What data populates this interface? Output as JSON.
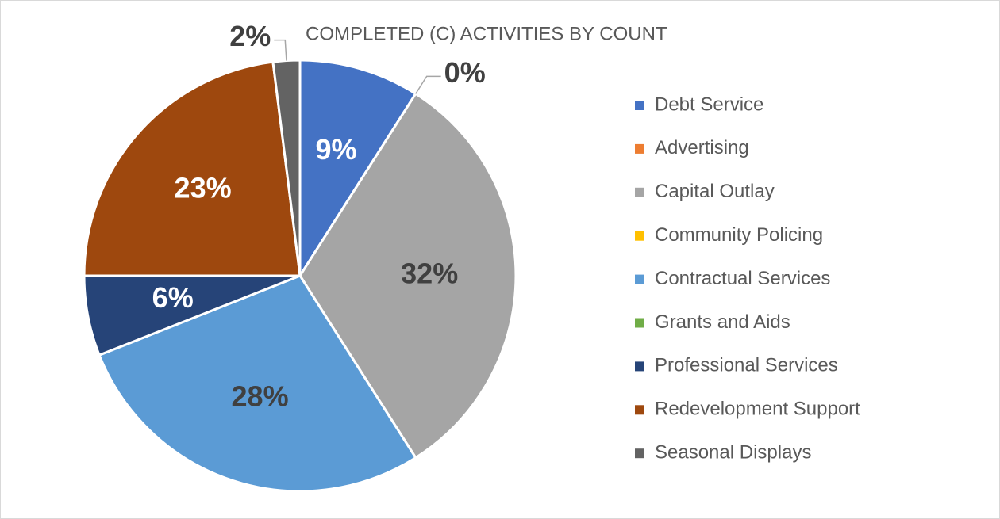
{
  "chart_data": {
    "type": "pie",
    "title": "COMPLETED (C) ACTIVITIES  BY COUNT",
    "categories": [
      "Debt Service",
      "Advertising",
      "Capital Outlay",
      "Community Policing",
      "Contractual Services",
      "Grants and Aids",
      "Professional Services",
      "Redevelopment Support",
      "Seasonal Displays"
    ],
    "values": [
      9,
      0,
      32,
      0,
      28,
      0,
      6,
      23,
      2
    ],
    "value_labels": [
      "9%",
      "0%",
      "32%",
      null,
      "28%",
      null,
      "6%",
      "23%",
      "2%"
    ],
    "colors": [
      "#4472c4",
      "#ed7d31",
      "#a5a5a5",
      "#ffc000",
      "#5b9bd5",
      "#70ad47",
      "#264478",
      "#9e480e",
      "#636363"
    ],
    "legend": "right"
  }
}
